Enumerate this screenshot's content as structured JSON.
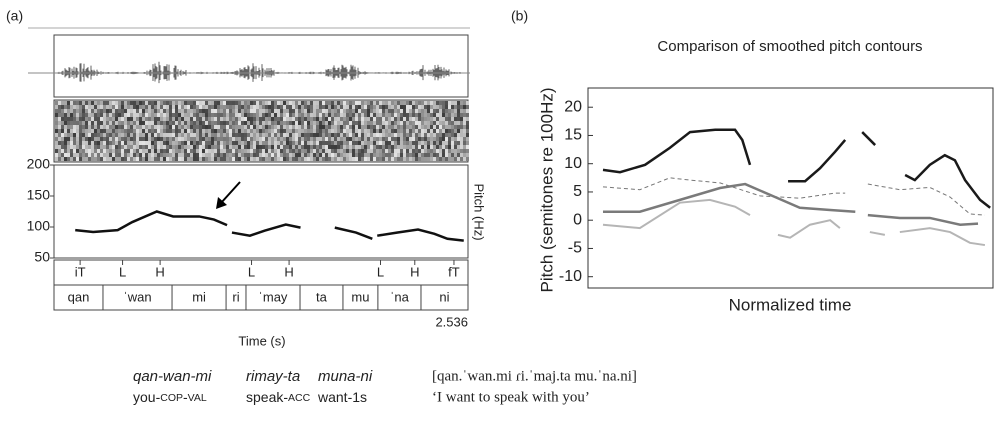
{
  "panel_labels": [
    "(a)",
    "(b)"
  ],
  "chart_data": [
    {
      "type": "line",
      "ylabel": "Pitch (Hz)",
      "xlabel": "Time (s)",
      "xlim": [
        0,
        2.536
      ],
      "xticks": [
        2.536
      ],
      "ylim": [
        50,
        200
      ],
      "yticks": [
        50,
        100,
        150,
        200
      ],
      "color": "#111111",
      "x": [
        0.13,
        0.24,
        0.39,
        0.48,
        0.63,
        0.73,
        0.89,
        0.98,
        1.06,
        null,
        1.09,
        1.2,
        1.29,
        1.42,
        1.51,
        null,
        1.72,
        1.85,
        1.95,
        null,
        1.98,
        2.1,
        2.23,
        2.33,
        2.41,
        2.51
      ],
      "values": [
        95,
        92,
        95,
        108,
        125,
        117,
        117,
        112,
        103,
        null,
        91,
        86,
        94,
        104,
        99,
        null,
        99,
        91,
        81,
        null,
        86,
        91,
        96,
        89,
        81,
        78
      ],
      "tones": [
        "iT",
        "L",
        "H",
        "L",
        "H",
        "L",
        "H",
        "fT"
      ],
      "tone_times": [
        0.16,
        0.42,
        0.65,
        1.21,
        1.44,
        2.0,
        2.21,
        2.45
      ],
      "syllables": [
        "qan",
        "ˈwan",
        "mi",
        "ri",
        "ˈmay",
        "ta",
        "mu",
        "ˈna",
        "ni"
      ],
      "syllable_boundaries": [
        0.3,
        0.723,
        1.054,
        1.176,
        1.507,
        1.77,
        1.984,
        2.248
      ]
    },
    {
      "type": "line",
      "title": "Comparison of smoothed pitch contours",
      "ylabel": "Pitch (semitones re 100Hz)",
      "xlabel": "Normalized time",
      "xlim": [
        0,
        1
      ],
      "ylim": [
        -12,
        23.4
      ],
      "yticks": [
        -10,
        -5,
        0,
        5,
        10,
        15,
        20
      ],
      "series": [
        {
          "color": "#1a1a1a",
          "width": 2.5,
          "dash": "none",
          "x": [
            0.037,
            0.079,
            0.141,
            0.202,
            0.252,
            0.314,
            0.363,
            0.381,
            0.4,
            null,
            0.494,
            0.536,
            0.573,
            0.61,
            0.635,
            null,
            0.677,
            0.709,
            null,
            0.783,
            0.807,
            0.844,
            0.881,
            0.906,
            0.931,
            0.968,
            0.993
          ],
          "values": [
            8.9,
            8.5,
            9.8,
            12.8,
            15.6,
            16,
            16,
            14.2,
            9.8,
            null,
            6.9,
            6.9,
            9.2,
            12.1,
            14.2,
            null,
            15.6,
            13.3,
            null,
            8,
            7.1,
            9.8,
            11.5,
            10.6,
            7.1,
            3.6,
            2.2
          ]
        },
        {
          "color": "#777777",
          "width": 1,
          "dash": "4 3",
          "x": [
            0.037,
            0.128,
            0.202,
            0.252,
            0.326,
            0.425,
            0.523,
            0.61,
            0.635,
            null,
            0.691,
            0.77,
            0.844,
            0.894,
            0.943,
            0.98
          ],
          "values": [
            5.9,
            5.4,
            7.5,
            7.1,
            6.6,
            4.3,
            3.9,
            4.8,
            4.8,
            null,
            6.4,
            5.4,
            5.8,
            4.1,
            1.1,
            0.9
          ]
        },
        {
          "color": "#7a7a7a",
          "width": 2.5,
          "dash": "none",
          "x": [
            0.037,
            0.128,
            0.227,
            0.326,
            0.388,
            0.449,
            0.523,
            0.598,
            0.66,
            null,
            0.691,
            0.77,
            0.844,
            0.919,
            0.963
          ],
          "values": [
            1.5,
            1.5,
            3.6,
            5.7,
            6.4,
            4.5,
            2.2,
            1.8,
            1.5,
            null,
            0.9,
            0.4,
            0.4,
            -0.8,
            -0.6
          ]
        },
        {
          "color": "#b5b5b5",
          "width": 2,
          "dash": "none",
          "x": [
            0.037,
            0.128,
            0.227,
            0.301,
            0.363,
            0.4,
            null,
            0.469,
            0.499,
            0.548,
            0.598,
            0.622,
            null,
            0.696,
            0.733,
            null,
            0.77,
            0.844,
            0.894,
            0.943,
            0.98
          ],
          "values": [
            -0.8,
            -1.4,
            3.1,
            3.6,
            2.4,
            0.9,
            null,
            -2.6,
            -3.1,
            -0.8,
            0,
            -1.4,
            null,
            -2.1,
            -2.6,
            null,
            -2.1,
            -1.4,
            -2.1,
            -4,
            -4.4
          ]
        }
      ]
    }
  ],
  "gloss": {
    "words": [
      "qan-wan-mi",
      "rimay-ta",
      "muna-ni"
    ],
    "transcription": "[qan.ˈwan.mi ɾi.ˈmaj.ta mu.ˈna.ni]",
    "glosses": [
      [
        "you-",
        "COP",
        "-",
        "VAL"
      ],
      [
        "speak-",
        "ACC"
      ],
      [
        "want-1s"
      ]
    ],
    "translation": "‘I want to speak with you’"
  }
}
